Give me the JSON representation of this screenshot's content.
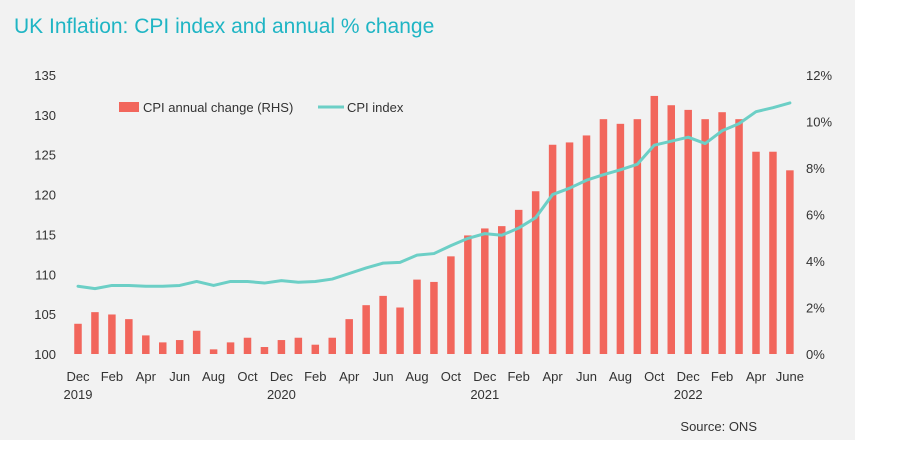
{
  "title": "UK Inflation: CPI index and annual % change",
  "source": "Source: ONS",
  "colors": {
    "title": "#1fb5c4",
    "bars": "#f2665c",
    "line": "#6ccfc6",
    "background": "#f2f2f2"
  },
  "chart_data": {
    "type": "bar+line",
    "title": "UK Inflation: CPI index and annual % change",
    "legend_position": "top-left",
    "grid": false,
    "x_tick_labels": [
      "Dec",
      "Feb",
      "Apr",
      "Jun",
      "Aug",
      "Oct",
      "Dec",
      "Feb",
      "Apr",
      "Jun",
      "Aug",
      "Oct",
      "Dec",
      "Feb",
      "Apr",
      "Jun",
      "Aug",
      "Oct",
      "Dec",
      "Feb",
      "Apr",
      "June"
    ],
    "x_year_labels": [
      {
        "label": "2019",
        "index": 0
      },
      {
        "label": "2020",
        "index": 12
      },
      {
        "label": "2021",
        "index": 24
      },
      {
        "label": "2022",
        "index": 36
      }
    ],
    "categories": [
      "2019-12",
      "2020-01",
      "2020-02",
      "2020-03",
      "2020-04",
      "2020-05",
      "2020-06",
      "2020-07",
      "2020-08",
      "2020-09",
      "2020-10",
      "2020-11",
      "2020-12",
      "2021-01",
      "2021-02",
      "2021-03",
      "2021-04",
      "2021-05",
      "2021-06",
      "2021-07",
      "2021-08",
      "2021-09",
      "2021-10",
      "2021-11",
      "2021-12",
      "2022-01",
      "2022-02",
      "2022-03",
      "2022-04",
      "2022-05",
      "2022-06",
      "2022-07",
      "2022-08",
      "2022-09",
      "2022-10",
      "2022-11",
      "2022-12",
      "2023-01",
      "2023-02",
      "2023-03",
      "2023-04",
      "2023-05",
      "2023-06"
    ],
    "y_left": {
      "range": [
        100,
        135
      ],
      "ticks": [
        "100",
        "105",
        "110",
        "115",
        "120",
        "125",
        "130",
        "135"
      ]
    },
    "y_right": {
      "range": [
        0,
        12
      ],
      "ticks": [
        "0%",
        "2%",
        "4%",
        "6%",
        "8%",
        "10%",
        "12%"
      ]
    },
    "series": [
      {
        "name": "CPI annual change (RHS)",
        "type": "bar",
        "axis": "right",
        "values": [
          1.3,
          1.8,
          1.7,
          1.5,
          0.8,
          0.5,
          0.6,
          1.0,
          0.2,
          0.5,
          0.7,
          0.3,
          0.6,
          0.7,
          0.4,
          0.7,
          1.5,
          2.1,
          2.5,
          2.0,
          3.2,
          3.1,
          4.2,
          5.1,
          5.4,
          5.5,
          6.2,
          7.0,
          9.0,
          9.1,
          9.4,
          10.1,
          9.9,
          10.1,
          11.1,
          10.7,
          10.5,
          10.1,
          10.4,
          10.1,
          8.7,
          8.7,
          7.9
        ]
      },
      {
        "name": "CPI index",
        "type": "line",
        "axis": "left",
        "values": [
          108.5,
          108.2,
          108.6,
          108.6,
          108.5,
          108.5,
          108.6,
          109.1,
          108.6,
          109.1,
          109.1,
          108.9,
          109.2,
          109.0,
          109.1,
          109.4,
          110.1,
          110.8,
          111.4,
          111.5,
          112.4,
          112.6,
          113.6,
          114.5,
          115.1,
          114.9,
          115.8,
          117.1,
          120.0,
          120.8,
          121.8,
          122.5,
          123.1,
          123.8,
          126.2,
          126.7,
          127.2,
          126.4,
          128.0,
          128.9,
          130.4,
          130.9,
          131.5
        ]
      }
    ]
  }
}
